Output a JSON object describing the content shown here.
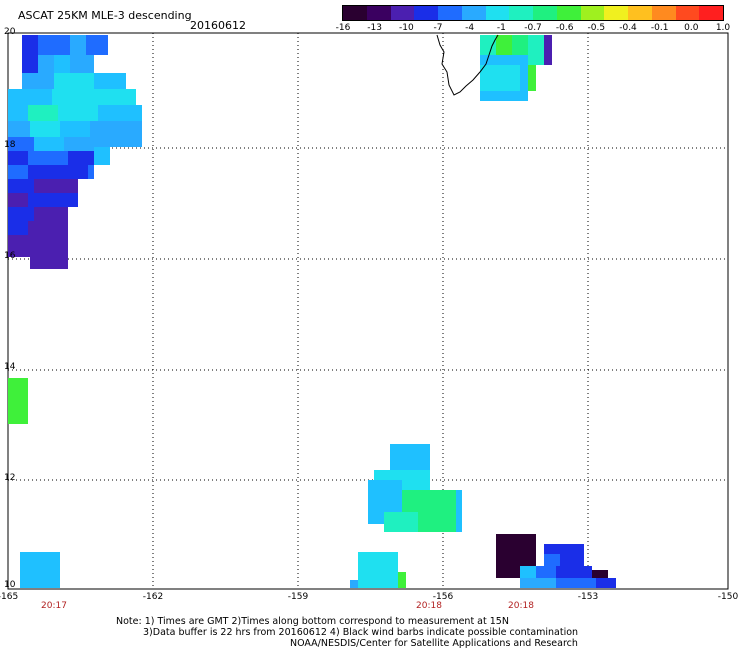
{
  "header": {
    "title": "ASCAT 25KM MLE-3 descending",
    "date": "20160612"
  },
  "colorbar": {
    "colors": [
      "#2a0030",
      "#3a0060",
      "#4b1fb0",
      "#1a2ee8",
      "#1f6cff",
      "#29aaff",
      "#1fe0f0",
      "#1ff0c0",
      "#1ff080",
      "#3ff03a",
      "#9ff01f",
      "#f0f01f",
      "#ffc01f",
      "#ff8a1f",
      "#ff4a1f",
      "#ff1f1f"
    ],
    "ticks": [
      "-16",
      "-13",
      "-10",
      "-7",
      "-4",
      "-1",
      "-0.7",
      "-0.6",
      "-0.5",
      "-0.4",
      "-0.1",
      "0.0",
      "1.0"
    ]
  },
  "axes": {
    "x_ticks": [
      "-165",
      "-162",
      "-159",
      "-156",
      "-153",
      "-150"
    ],
    "y_ticks": [
      "20",
      "18",
      "16",
      "14",
      "12",
      "10"
    ]
  },
  "time_labels": [
    "20:17",
    "20:18",
    "20:18"
  ],
  "notes": {
    "line1": "Note: 1) Times are GMT 2)Times along bottom correspond to measurement at 15N",
    "line2": "3)Data buffer is 22 hrs from 20160612 4) Black wind barbs indicate possible contamination",
    "line3": "NOAA/NESDIS/Center for Satellite Applications and Research"
  }
}
